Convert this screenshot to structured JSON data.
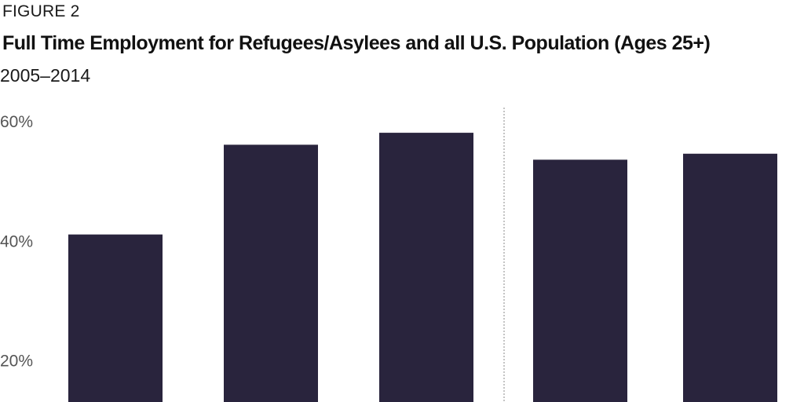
{
  "header": {
    "figure_label": "FIGURE 2",
    "title": "Full Time Employment for Refugees/Asylees and all U.S. Population (Ages 25+)",
    "subtitle": "2005–2014"
  },
  "chart_data": {
    "type": "bar",
    "title": "Full Time Employment for Refugees/Asylees and all U.S. Population (Ages 25+)",
    "subtitle": "2005–2014",
    "xlabel": "",
    "ylabel": "",
    "ylim": [
      13,
      63
    ],
    "yticks": [
      20,
      40,
      60
    ],
    "ytick_labels": [
      "20%",
      "40%",
      "60%"
    ],
    "grid": false,
    "divider_after_index": 2,
    "bar_color": "#29243d",
    "divider_color": "#888888",
    "values": [
      41,
      56,
      58,
      53.5,
      54.5
    ]
  }
}
